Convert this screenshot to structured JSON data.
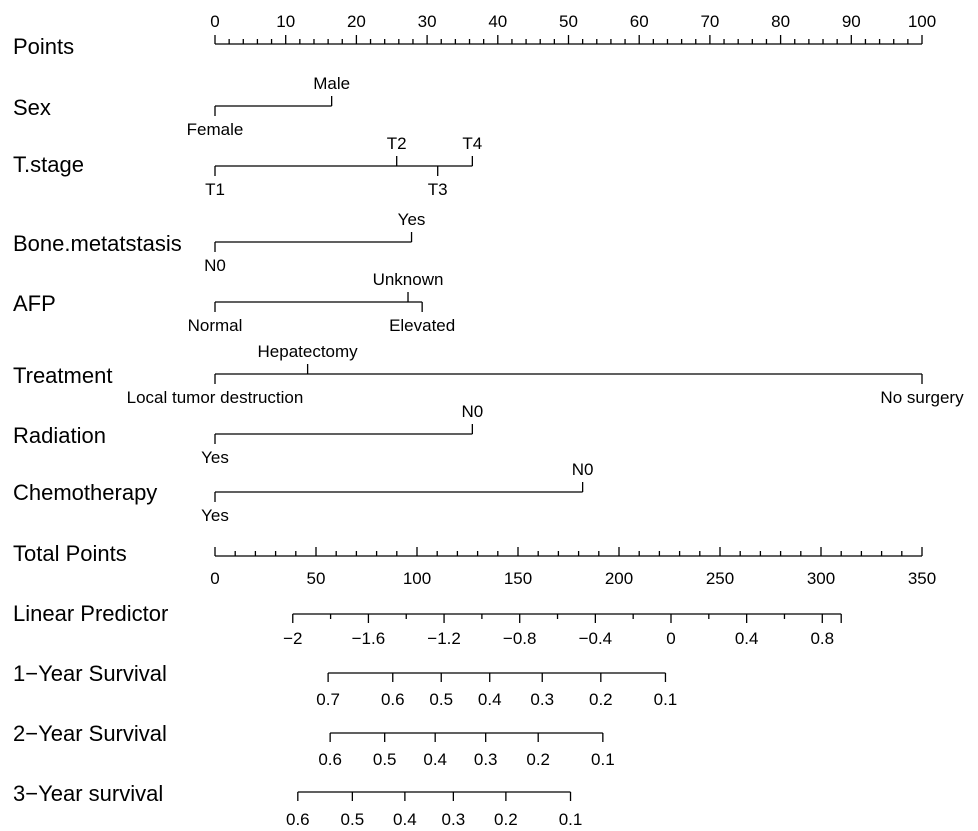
{
  "chart_data": {
    "type": "nomogram",
    "points_scale": {
      "label": "Points",
      "range": [
        0,
        100
      ],
      "major_ticks": [
        0,
        10,
        20,
        30,
        40,
        50,
        60,
        70,
        80,
        90,
        100
      ],
      "minor_step": 2
    },
    "variables": [
      {
        "label": "Sex",
        "levels": [
          {
            "name": "Female",
            "points": 0,
            "label_side": "below"
          },
          {
            "name": "Male",
            "points": 16.5,
            "label_side": "above"
          }
        ]
      },
      {
        "label": "T.stage",
        "levels": [
          {
            "name": "T1",
            "points": 0,
            "label_side": "below"
          },
          {
            "name": "T2",
            "points": 25.7,
            "label_side": "above"
          },
          {
            "name": "T3",
            "points": 31.5,
            "label_side": "below"
          },
          {
            "name": "T4",
            "points": 36.4,
            "label_side": "above"
          }
        ]
      },
      {
        "label": "Bone.metatstasis",
        "levels": [
          {
            "name": "N0",
            "points": 0,
            "label_side": "below"
          },
          {
            "name": "Yes",
            "points": 27.8,
            "label_side": "above"
          }
        ]
      },
      {
        "label": "AFP",
        "levels": [
          {
            "name": "Normal",
            "points": 0,
            "label_side": "below"
          },
          {
            "name": "Unknown",
            "points": 27.3,
            "label_side": "above"
          },
          {
            "name": "Elevated",
            "points": 29.3,
            "label_side": "below"
          }
        ]
      },
      {
        "label": "Treatment",
        "levels": [
          {
            "name": "Local tumor destruction",
            "points": 0,
            "label_side": "below"
          },
          {
            "name": "Hepatectomy",
            "points": 13.1,
            "label_side": "above"
          },
          {
            "name": "No surgery",
            "points": 100,
            "label_side": "below"
          }
        ]
      },
      {
        "label": "Radiation",
        "levels": [
          {
            "name": "Yes",
            "points": 0,
            "label_side": "below"
          },
          {
            "name": "N0",
            "points": 36.4,
            "label_side": "above"
          }
        ]
      },
      {
        "label": "Chemotherapy",
        "levels": [
          {
            "name": "Yes",
            "points": 0,
            "label_side": "below"
          },
          {
            "name": "N0",
            "points": 52,
            "label_side": "above"
          }
        ]
      }
    ],
    "total_points_scale": {
      "label": "Total Points",
      "range": [
        0,
        350
      ],
      "major_ticks": [
        0,
        50,
        100,
        150,
        200,
        250,
        300,
        350
      ],
      "minor_step": 10
    },
    "linear_predictor": {
      "label": "Linear Predictor",
      "range": [
        -2,
        0.9
      ],
      "major_ticks": [
        -2,
        -1.6,
        -1.2,
        -0.8,
        -0.4,
        0,
        0.4,
        0.8
      ],
      "tick_labels": [
        "−2",
        "−1.6",
        "−1.2",
        "−0.8",
        "−0.4",
        "0",
        "0.4",
        "0.8"
      ],
      "minor_step": 0.2,
      "total_points_at_range": [
        38.5,
        310
      ]
    },
    "survival_scales": [
      {
        "label": "1−Year Survival",
        "ticks": [
          {
            "label": "0.7",
            "total_points": 56
          },
          {
            "label": "0.6",
            "total_points": 88
          },
          {
            "label": "0.5",
            "total_points": 112
          },
          {
            "label": "0.4",
            "total_points": 136
          },
          {
            "label": "0.3",
            "total_points": 162
          },
          {
            "label": "0.2",
            "total_points": 191
          },
          {
            "label": "0.1",
            "total_points": 223
          }
        ]
      },
      {
        "label": "2−Year Survival",
        "ticks": [
          {
            "label": "0.6",
            "total_points": 57
          },
          {
            "label": "0.5",
            "total_points": 84
          },
          {
            "label": "0.4",
            "total_points": 109
          },
          {
            "label": "0.3",
            "total_points": 134
          },
          {
            "label": "0.2",
            "total_points": 160
          },
          {
            "label": "0.1",
            "total_points": 192
          }
        ]
      },
      {
        "label": "3−Year survival",
        "ticks": [
          {
            "label": "0.6",
            "total_points": 41
          },
          {
            "label": "0.5",
            "total_points": 68
          },
          {
            "label": "0.4",
            "total_points": 94
          },
          {
            "label": "0.3",
            "total_points": 118
          },
          {
            "label": "0.2",
            "total_points": 144
          },
          {
            "label": "0.1",
            "total_points": 176
          }
        ]
      }
    ]
  }
}
